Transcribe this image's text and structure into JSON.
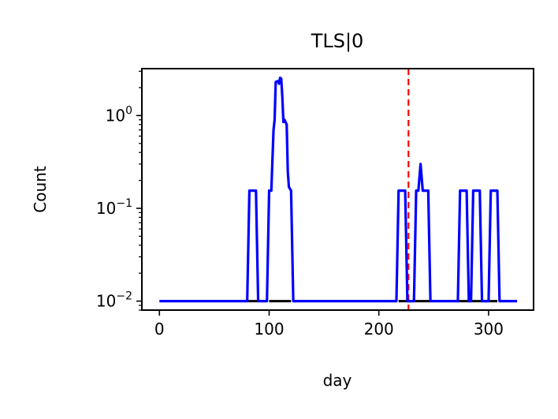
{
  "chart_data": {
    "type": "line",
    "title": "TLS|0",
    "xlabel": "day",
    "ylabel": "Count",
    "xlim": [
      -16,
      341
    ],
    "ylim": [
      0.008,
      3.2
    ],
    "yscale": "log",
    "xticks": [
      0,
      100,
      200,
      300
    ],
    "yticks": [
      {
        "value": 0.01,
        "base": "10",
        "exp": "−2"
      },
      {
        "value": 0.1,
        "base": "10",
        "exp": "−1"
      },
      {
        "value": 1,
        "base": "10",
        "exp": "0"
      }
    ],
    "grid": false,
    "vline": {
      "x": 227,
      "color": "#ff0000",
      "style": "dashed"
    },
    "baseline_segments": [
      [
        80,
        90
      ],
      [
        100,
        120
      ],
      [
        218,
        247
      ],
      [
        272,
        308
      ]
    ],
    "series": [
      {
        "color": "#0000ff",
        "points": [
          [
            0,
            0.01
          ],
          [
            80,
            0.01
          ],
          [
            82,
            0.155
          ],
          [
            88,
            0.155
          ],
          [
            90,
            0.01
          ],
          [
            98,
            0.01
          ],
          [
            100,
            0.155
          ],
          [
            102,
            0.155
          ],
          [
            104,
            0.7
          ],
          [
            105,
            0.9
          ],
          [
            106,
            2.3
          ],
          [
            108,
            2.35
          ],
          [
            109,
            2.2
          ],
          [
            110,
            2.55
          ],
          [
            111,
            2.5
          ],
          [
            112,
            1.6
          ],
          [
            113,
            0.85
          ],
          [
            114,
            0.9
          ],
          [
            116,
            0.8
          ],
          [
            117,
            0.25
          ],
          [
            118,
            0.17
          ],
          [
            120,
            0.155
          ],
          [
            122,
            0.01
          ],
          [
            216,
            0.01
          ],
          [
            218,
            0.155
          ],
          [
            224,
            0.155
          ],
          [
            226,
            0.01
          ],
          [
            232,
            0.01
          ],
          [
            234,
            0.155
          ],
          [
            236,
            0.155
          ],
          [
            238,
            0.3
          ],
          [
            240,
            0.155
          ],
          [
            245,
            0.155
          ],
          [
            247,
            0.01
          ],
          [
            272,
            0.01
          ],
          [
            274,
            0.155
          ],
          [
            280,
            0.155
          ],
          [
            282,
            0.01
          ],
          [
            284,
            0.01
          ],
          [
            286,
            0.155
          ],
          [
            292,
            0.155
          ],
          [
            294,
            0.01
          ],
          [
            300,
            0.01
          ],
          [
            302,
            0.155
          ],
          [
            308,
            0.155
          ],
          [
            310,
            0.01
          ],
          [
            326,
            0.01
          ]
        ]
      }
    ]
  }
}
